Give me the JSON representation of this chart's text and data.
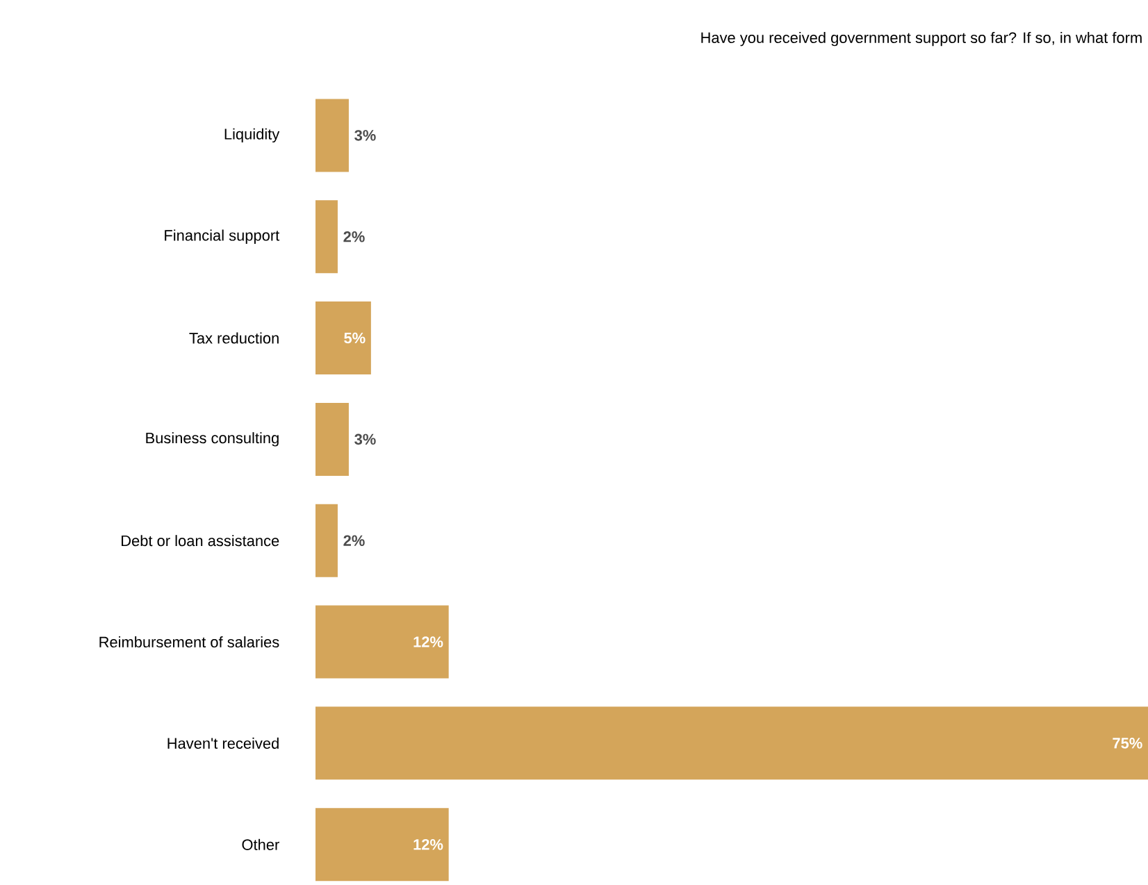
{
  "chart_data": {
    "type": "bar",
    "orientation": "horizontal",
    "title": "Have you received government support so far? If so, in what form",
    "categories": [
      "Liquidity",
      "Financial support",
      "Tax reduction",
      "Business consulting",
      "Debt or loan assistance",
      "Reimbursement of salaries",
      "Haven't received",
      "Other"
    ],
    "values": [
      3,
      2,
      5,
      3,
      2,
      12,
      75,
      12
    ],
    "value_labels": [
      "3%",
      "2%",
      "5%",
      "3%",
      "2%",
      "12%",
      "75%",
      "12%"
    ],
    "color": "#d4a55a"
  }
}
